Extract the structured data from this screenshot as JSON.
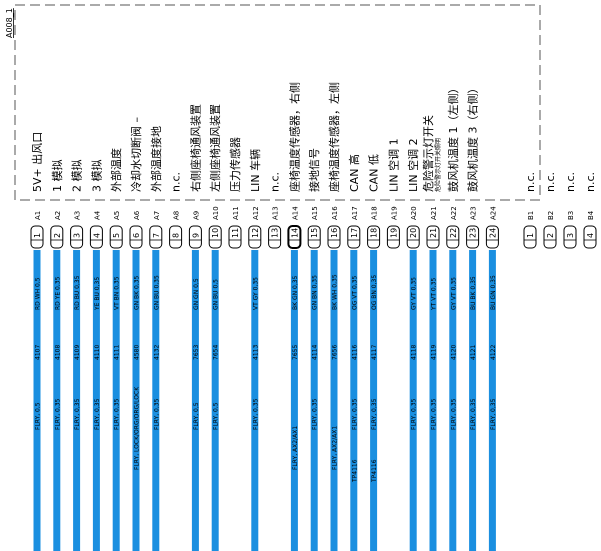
{
  "module": "A008_1",
  "pins": [
    {
      "id": "A1",
      "number": "1",
      "label": "5V+ 出风口",
      "wire": {
        "color": "RD WH 0,5",
        "number": "4107",
        "type": "FLRY, 0,5"
      }
    },
    {
      "id": "A2",
      "number": "2",
      "label": "1 模拟",
      "wire": {
        "color": "RD YE 0,35",
        "number": "4108",
        "type": "FLRY, 0,35"
      }
    },
    {
      "id": "A3",
      "number": "3",
      "label": "2 模拟",
      "wire": {
        "color": "RD BU 0,35",
        "number": "4109",
        "type": "FLRY, 0,35"
      }
    },
    {
      "id": "A4",
      "number": "4",
      "label": "3 模拟",
      "wire": {
        "color": "YE BU 0,35",
        "number": "4110",
        "type": "FLRY, 0,35"
      }
    },
    {
      "id": "A5",
      "number": "5",
      "label": "外部温度",
      "wire": {
        "color": "VT BN 0,35",
        "number": "4111",
        "type": "FLRY, 0,35"
      }
    },
    {
      "id": "A6",
      "number": "6",
      "label": "冷却水切断阀 –",
      "wire": {
        "color": "GN BK 0,35",
        "number": "4580",
        "type": "FLRY, LOCK/ORG/ORG/LOCK"
      }
    },
    {
      "id": "A7",
      "number": "7",
      "label": "外部温度接地",
      "wire": {
        "color": "GN BU 0,35",
        "number": "4132",
        "type": "FLRY, 0,35"
      }
    },
    {
      "id": "A8",
      "number": "8",
      "label": "n.c."
    },
    {
      "id": "A9",
      "number": "9",
      "label": "右侧座椅通风装置",
      "wire": {
        "color": "GN GN 0,5",
        "number": "7653",
        "type": "FLRY, 0,5"
      }
    },
    {
      "id": "A10",
      "number": "10",
      "label": "左侧座椅通风装置",
      "wire": {
        "color": "GN BU 0,5",
        "number": "7654",
        "type": "FLRY, 0,5"
      }
    },
    {
      "id": "A11",
      "number": "11",
      "label": "压力传感器"
    },
    {
      "id": "A12",
      "number": "12",
      "label": "LIN 车辆",
      "wire": {
        "color": "VT GY 0,35",
        "number": "4113",
        "type": "FLRY, 0,35"
      }
    },
    {
      "id": "A13",
      "number": "13",
      "label": "n.c."
    },
    {
      "id": "A14",
      "number": "14",
      "label": "座椅温度传感器，右侧",
      "wire": {
        "color": "BK GN 0,35",
        "number": "7655",
        "type": "FLRY, AX2/AX1"
      }
    },
    {
      "id": "A15",
      "number": "15",
      "label": "接地信号",
      "wire": {
        "color": "GN BN 0,35",
        "number": "4114",
        "type": "FLRY, 0,35"
      }
    },
    {
      "id": "A16",
      "number": "16",
      "label": "座椅温度传感器，左侧",
      "wire": {
        "color": "BK WH 0,35",
        "number": "7656",
        "type": "FLRY, AX2/AX1"
      }
    },
    {
      "id": "A17",
      "number": "17",
      "label": "CAN 高",
      "wire": {
        "color": "OG VT 0,35",
        "number": "4116",
        "type": "FLRY, 0,35",
        "tp": "TP4116"
      }
    },
    {
      "id": "A18",
      "number": "18",
      "label": "CAN 低",
      "wire": {
        "color": "OG BN 0,35",
        "number": "4117",
        "type": "FLRY, 0,35",
        "tp": "TP4116"
      }
    },
    {
      "id": "A19",
      "number": "19",
      "label": "LIN 空调 1"
    },
    {
      "id": "A20",
      "number": "20",
      "label": "LIN 空调 2",
      "wire": {
        "color": "GY VT 0,35",
        "number": "4118",
        "type": "FLRY, 0,35"
      }
    },
    {
      "id": "A21",
      "number": "21",
      "label": "危险警示灯开关",
      "sublabel": "危险警示灯开关照明",
      "wire": {
        "color": "YT VT 0,35",
        "number": "4119",
        "type": "FLRY, 0,35"
      }
    },
    {
      "id": "A22",
      "number": "22",
      "label": "鼓风机温度 1（左侧）",
      "wire": {
        "color": "GY VT 0,35",
        "number": "4120",
        "type": "FLRY, 0,35"
      }
    },
    {
      "id": "A23",
      "number": "23",
      "label": "鼓风机温度 3（右侧）",
      "wire": {
        "color": "BU BK 0,35",
        "number": "4121",
        "type": "FLRY, 0,35"
      }
    },
    {
      "id": "A24",
      "number": "24",
      "wire": {
        "color": "BU GN 0,35",
        "number": "4122",
        "type": "FLRY, 0,35"
      }
    },
    {
      "id": "B1",
      "number": "1",
      "label": "n.c."
    },
    {
      "id": "B2",
      "number": "2",
      "label": "n.c."
    },
    {
      "id": "B3",
      "number": "3",
      "label": "n.c."
    },
    {
      "id": "B4",
      "number": "4",
      "label": "n.c."
    }
  ]
}
